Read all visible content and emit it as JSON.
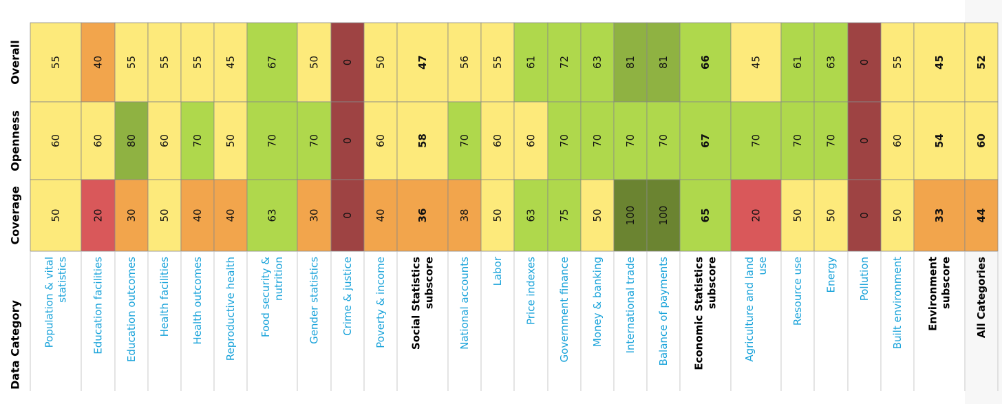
{
  "chart_data": {
    "type": "heatmap",
    "row_header": "Data Category",
    "rows": [
      "Overall",
      "Openness",
      "Coverage"
    ],
    "categories": [
      {
        "label": [
          "Population & vital",
          "statistics"
        ],
        "subscore": false
      },
      {
        "label": [
          "Education facilities"
        ],
        "subscore": false
      },
      {
        "label": [
          "Education outcomes"
        ],
        "subscore": false
      },
      {
        "label": [
          "Health facilities"
        ],
        "subscore": false
      },
      {
        "label": [
          "Health outcomes"
        ],
        "subscore": false
      },
      {
        "label": [
          "Reproductive health"
        ],
        "subscore": false
      },
      {
        "label": [
          "Food security &",
          "nutrition"
        ],
        "subscore": false
      },
      {
        "label": [
          "Gender statistics"
        ],
        "subscore": false
      },
      {
        "label": [
          "Crime & justice"
        ],
        "subscore": false
      },
      {
        "label": [
          "Poverty & income"
        ],
        "subscore": false
      },
      {
        "label": [
          "Social Statistics",
          "subscore"
        ],
        "subscore": true
      },
      {
        "label": [
          "National accounts"
        ],
        "subscore": false
      },
      {
        "label": [
          "Labor"
        ],
        "subscore": false
      },
      {
        "label": [
          "Price indexes"
        ],
        "subscore": false
      },
      {
        "label": [
          "Government finance"
        ],
        "subscore": false
      },
      {
        "label": [
          "Money & banking"
        ],
        "subscore": false
      },
      {
        "label": [
          "International trade"
        ],
        "subscore": false
      },
      {
        "label": [
          "Balance of payments"
        ],
        "subscore": false
      },
      {
        "label": [
          "Economic Statistics",
          "subscore"
        ],
        "subscore": true
      },
      {
        "label": [
          "Agriculture and land",
          "use"
        ],
        "subscore": false
      },
      {
        "label": [
          "Resource use"
        ],
        "subscore": false
      },
      {
        "label": [
          "Energy"
        ],
        "subscore": false
      },
      {
        "label": [
          "Pollution"
        ],
        "subscore": false
      },
      {
        "label": [
          "Built environment"
        ],
        "subscore": false
      },
      {
        "label": [
          "Environment",
          "subscore"
        ],
        "subscore": true
      },
      {
        "label": [
          "All Categories"
        ],
        "subscore": true
      }
    ],
    "values": {
      "Overall": [
        55,
        40,
        55,
        55,
        55,
        45,
        67,
        50,
        0,
        50,
        47,
        56,
        55,
        61,
        72,
        63,
        81,
        81,
        66,
        45,
        61,
        63,
        0,
        55,
        45,
        52
      ],
      "Openness": [
        60,
        60,
        80,
        60,
        70,
        50,
        70,
        70,
        0,
        60,
        58,
        70,
        60,
        60,
        70,
        70,
        70,
        70,
        67,
        70,
        70,
        70,
        0,
        60,
        54,
        60
      ],
      "Coverage": [
        50,
        20,
        30,
        50,
        40,
        40,
        63,
        30,
        0,
        40,
        36,
        38,
        50,
        63,
        75,
        50,
        100,
        100,
        65,
        20,
        50,
        50,
        0,
        50,
        33,
        44
      ]
    },
    "colors": {
      "dark_red": "#9e4343",
      "red": "#d9585a",
      "orange": "#f2a54c",
      "yellow": "#fdea7b",
      "light_green": "#afd84c",
      "mid_green": "#8fb242",
      "dark_green": "#6b8431",
      "label_link": "#1aa3da",
      "label_bold": "#000000",
      "grid": "#888888"
    }
  }
}
